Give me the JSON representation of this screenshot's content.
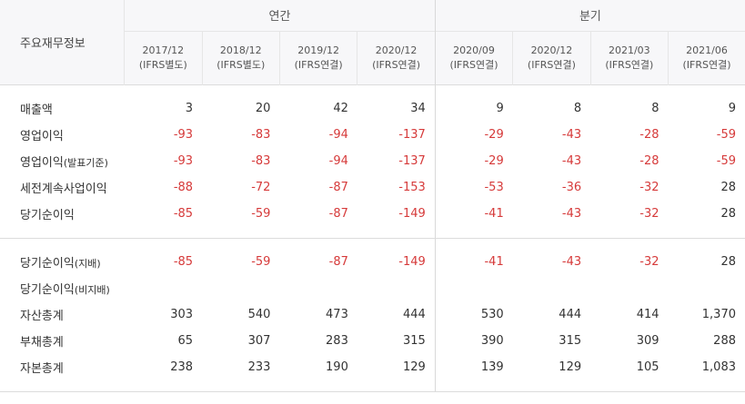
{
  "header": {
    "row_label": "주요재무정보",
    "annual_label": "연간",
    "quarterly_label": "분기",
    "periods": [
      {
        "date": "2017/12",
        "basis": "(IFRS별도)"
      },
      {
        "date": "2018/12",
        "basis": "(IFRS별도)"
      },
      {
        "date": "2019/12",
        "basis": "(IFRS연결)"
      },
      {
        "date": "2020/12",
        "basis": "(IFRS연결)"
      },
      {
        "date": "2020/09",
        "basis": "(IFRS연결)"
      },
      {
        "date": "2020/12",
        "basis": "(IFRS연결)"
      },
      {
        "date": "2021/03",
        "basis": "(IFRS연결)"
      },
      {
        "date": "2021/06",
        "basis": "(IFRS연결)"
      }
    ]
  },
  "sections": [
    {
      "rows": [
        {
          "label": "매출액",
          "sub": "",
          "values": [
            "3",
            "20",
            "42",
            "34",
            "9",
            "8",
            "8",
            "9"
          ]
        },
        {
          "label": "영업이익",
          "sub": "",
          "values": [
            "-93",
            "-83",
            "-94",
            "-137",
            "-29",
            "-43",
            "-28",
            "-59"
          ]
        },
        {
          "label": "영업이익",
          "sub": "(발표기준)",
          "values": [
            "-93",
            "-83",
            "-94",
            "-137",
            "-29",
            "-43",
            "-28",
            "-59"
          ]
        },
        {
          "label": "세전계속사업이익",
          "sub": "",
          "values": [
            "-88",
            "-72",
            "-87",
            "-153",
            "-53",
            "-36",
            "-32",
            "28"
          ]
        },
        {
          "label": "당기순이익",
          "sub": "",
          "values": [
            "-85",
            "-59",
            "-87",
            "-149",
            "-41",
            "-43",
            "-32",
            "28"
          ]
        }
      ]
    },
    {
      "rows": [
        {
          "label": "당기순이익",
          "sub": "(지배)",
          "values": [
            "-85",
            "-59",
            "-87",
            "-149",
            "-41",
            "-43",
            "-32",
            "28"
          ]
        },
        {
          "label": "당기순이익",
          "sub": "(비지배)",
          "values": [
            "",
            "",
            "",
            "",
            "",
            "",
            "",
            ""
          ]
        },
        {
          "label": "자산총계",
          "sub": "",
          "values": [
            "303",
            "540",
            "473",
            "444",
            "530",
            "444",
            "414",
            "1,370"
          ]
        },
        {
          "label": "부채총계",
          "sub": "",
          "values": [
            "65",
            "307",
            "283",
            "315",
            "390",
            "315",
            "309",
            "288"
          ]
        },
        {
          "label": "자본총계",
          "sub": "",
          "values": [
            "238",
            "233",
            "190",
            "129",
            "139",
            "129",
            "105",
            "1,083"
          ]
        }
      ]
    }
  ],
  "colors": {
    "negative": "#d63a3a",
    "positive": "#333333",
    "header_bg": "#f7f7f9"
  }
}
